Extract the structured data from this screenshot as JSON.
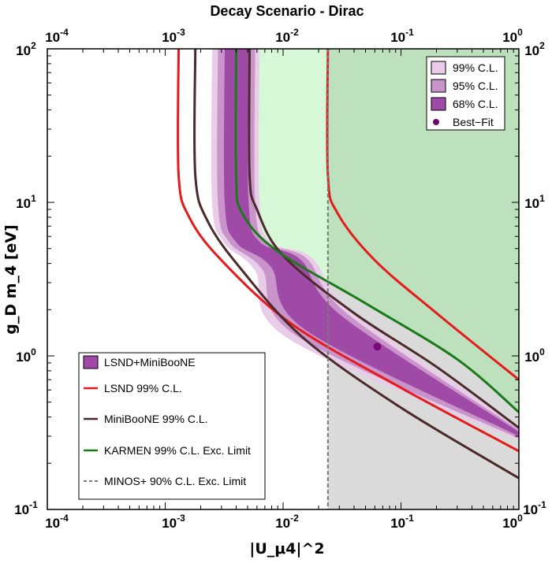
{
  "chart_data": {
    "type": "region-plot",
    "title": "Decay Scenario - Dirac",
    "xlabel": "|U_μ4|^2",
    "ylabel": "g_D m_4 [eV]",
    "xscale": "log",
    "yscale": "log",
    "xlim": [
      0.0001,
      1
    ],
    "ylim": [
      0.1,
      100
    ],
    "x_ticks": [
      {
        "base": "10",
        "exp": "-4"
      },
      {
        "base": "10",
        "exp": "-3"
      },
      {
        "base": "10",
        "exp": "-2"
      },
      {
        "base": "10",
        "exp": "-1"
      },
      {
        "base": "10",
        "exp": "0"
      }
    ],
    "y_ticks": [
      {
        "base": "10",
        "exp": "-1"
      },
      {
        "base": "10",
        "exp": "0"
      },
      {
        "base": "10",
        "exp": "1"
      },
      {
        "base": "10",
        "exp": "2"
      }
    ],
    "best_fit": {
      "x": 0.063,
      "y": 1.15
    },
    "bands": [
      {
        "name": "99% C.L.",
        "color": "#e8cce8",
        "left": {
          "x_asym": 0.0025,
          "start": [
            0.0025,
            100
          ],
          "knee": [
            0.0025,
            10
          ],
          "bend": [
            0.011,
            1.3
          ],
          "end": [
            1,
            0.28
          ]
        },
        "right": {
          "x_asym": 0.0063,
          "start": [
            0.0063,
            100
          ],
          "knee": [
            0.0063,
            10
          ],
          "bend": [
            0.04,
            1.9
          ],
          "end": [
            1,
            0.35
          ]
        }
      },
      {
        "name": "95% C.L.",
        "color": "#c994c9",
        "left": {
          "x_asym": 0.0028,
          "start": [
            0.0028,
            100
          ],
          "knee": [
            0.0028,
            10
          ],
          "bend": [
            0.013,
            1.35
          ],
          "end": [
            1,
            0.29
          ]
        },
        "right": {
          "x_asym": 0.0058,
          "start": [
            0.0058,
            100
          ],
          "knee": [
            0.0058,
            10
          ],
          "bend": [
            0.036,
            1.85
          ],
          "end": [
            1,
            0.33
          ]
        }
      },
      {
        "name": "68% C.L.",
        "color": "#a04aa8",
        "left": {
          "x_asym": 0.0032,
          "start": [
            0.0032,
            100
          ],
          "knee": [
            0.0032,
            10
          ],
          "bend": [
            0.016,
            1.45
          ],
          "end": [
            1,
            0.3
          ]
        },
        "right": {
          "x_asym": 0.0051,
          "start": [
            0.0051,
            100
          ],
          "knee": [
            0.0051,
            10
          ],
          "bend": [
            0.032,
            1.8
          ],
          "end": [
            1,
            0.32
          ]
        }
      }
    ],
    "curves": [
      {
        "name": "LSND 99% C.L.",
        "color": "#e41a1c",
        "branches": [
          [
            [
              0.0013,
              100
            ],
            [
              0.0013,
              15
            ],
            [
              0.0016,
              8
            ],
            [
              0.003,
              4.2
            ],
            [
              0.012,
              1.6
            ],
            [
              0.1,
              0.62
            ],
            [
              1,
              0.24
            ]
          ],
          [
            [
              0.024,
              100
            ],
            [
              0.024,
              15
            ],
            [
              0.029,
              8.5
            ],
            [
              0.06,
              4.2
            ],
            [
              0.2,
              1.9
            ],
            [
              1,
              0.7
            ]
          ]
        ]
      },
      {
        "name": "MiniBooNE 99% C.L.",
        "color": "#4a2a2a",
        "branches": [
          [
            [
              0.0018,
              100
            ],
            [
              0.0018,
              15
            ],
            [
              0.0023,
              7.5
            ],
            [
              0.0045,
              3.6
            ],
            [
              0.015,
              1.3
            ],
            [
              0.1,
              0.46
            ],
            [
              1,
              0.16
            ]
          ],
          [
            [
              0.0052,
              100
            ],
            [
              0.0052,
              15
            ],
            [
              0.006,
              9
            ],
            [
              0.01,
              4.5
            ],
            [
              0.04,
              1.9
            ],
            [
              0.2,
              0.85
            ],
            [
              1,
              0.34
            ]
          ]
        ]
      },
      {
        "name": "KARMEN 99% C.L. Exc. Limit",
        "color": "#1a7a1a",
        "branches": [
          [
            [
              0.004,
              100
            ],
            [
              0.004,
              15
            ],
            [
              0.0045,
              8.5
            ],
            [
              0.009,
              4.8
            ],
            [
              0.05,
              2.2
            ],
            [
              0.3,
              0.95
            ],
            [
              1,
              0.43
            ]
          ]
        ]
      }
    ],
    "minos_limit": {
      "name": "MINOS+ 90% C.L. Exc. Limit",
      "x": 0.024,
      "color": "#7a7a7a"
    },
    "legend_tr": [
      {
        "label": "99% C.L.",
        "color": "#e8cce8",
        "kind": "box"
      },
      {
        "label": "95% C.L.",
        "color": "#c994c9",
        "kind": "box"
      },
      {
        "label": "68% C.L.",
        "color": "#a04aa8",
        "kind": "box"
      },
      {
        "label": "Best−Fit",
        "color": "#6a0a6a",
        "kind": "dot"
      }
    ],
    "legend_bl": [
      {
        "label": "LSND+MiniBooNE",
        "color": "#a04aa8",
        "kind": "box"
      },
      {
        "label": "LSND 99% C.L.",
        "color": "#e41a1c",
        "kind": "line"
      },
      {
        "label": "MiniBooNE 99% C.L.",
        "color": "#4a2a2a",
        "kind": "line"
      },
      {
        "label": "KARMEN 99% C.L. Exc. Limit",
        "color": "#1a7a1a",
        "kind": "line"
      },
      {
        "label": "MINOS+ 90% C.L. Exc. Limit",
        "color": "#7a7a7a",
        "kind": "dash"
      }
    ],
    "fills": {
      "karmen_excluded": "#d6f8d6",
      "both_excluded": "#bde0bd",
      "minos_excluded": "#dadada"
    }
  }
}
